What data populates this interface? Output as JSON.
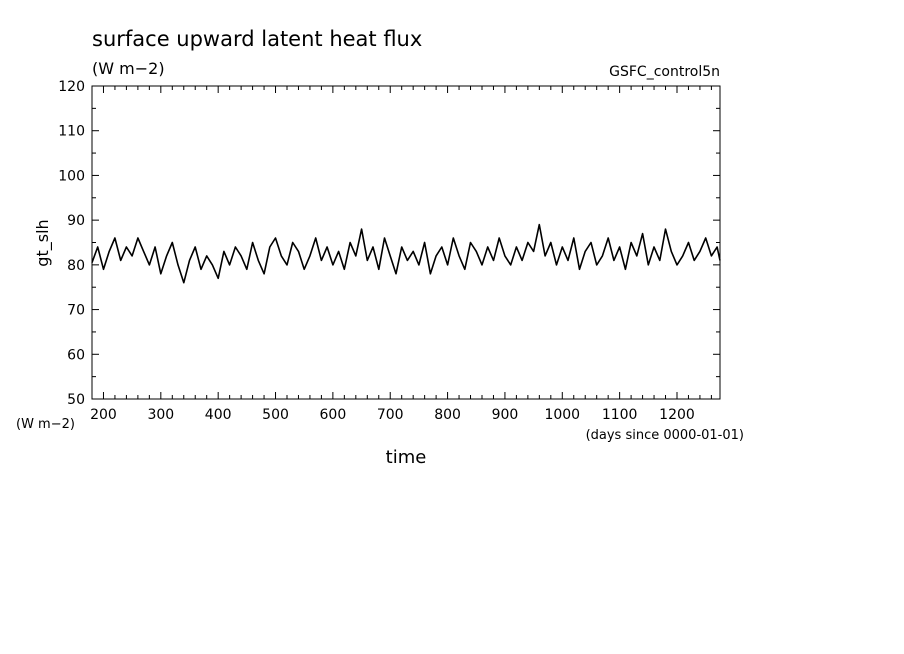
{
  "chart_data": {
    "type": "line",
    "title": "surface upward latent heat flux",
    "units_label": "(W m−2)",
    "run_label": "GSFC_control5n",
    "ylabel": "gt_slh",
    "y_unit_label": "(W m−2)",
    "xlabel": "time",
    "x_unit_label": "(days since 0000-01-01)",
    "xlim": [
      180,
      1275
    ],
    "ylim": [
      50,
      120
    ],
    "x_ticks": [
      200,
      300,
      400,
      500,
      600,
      700,
      800,
      900,
      1000,
      1100,
      1200
    ],
    "y_ticks": [
      50,
      60,
      70,
      80,
      90,
      100,
      110,
      120
    ],
    "series": [
      {
        "x": [
          180,
          190,
          200,
          210,
          220,
          230,
          240,
          250,
          260,
          270,
          280,
          290,
          300,
          310,
          320,
          330,
          340,
          350,
          360,
          370,
          380,
          390,
          400,
          410,
          420,
          430,
          440,
          450,
          460,
          470,
          480,
          490,
          500,
          510,
          520,
          530,
          540,
          550,
          560,
          570,
          580,
          590,
          600,
          610,
          620,
          630,
          640,
          650,
          660,
          670,
          680,
          690,
          700,
          710,
          720,
          730,
          740,
          750,
          760,
          770,
          780,
          790,
          800,
          810,
          820,
          830,
          840,
          850,
          860,
          870,
          880,
          890,
          900,
          910,
          920,
          930,
          940,
          950,
          960,
          970,
          980,
          990,
          1000,
          1010,
          1020,
          1030,
          1040,
          1050,
          1060,
          1070,
          1080,
          1090,
          1100,
          1110,
          1120,
          1130,
          1140,
          1150,
          1160,
          1170,
          1180,
          1190,
          1200,
          1210,
          1220,
          1230,
          1240,
          1250,
          1260,
          1270,
          1275
        ],
        "y": [
          80.5,
          84,
          79,
          83,
          86,
          81,
          84,
          82,
          86,
          83,
          80,
          84,
          78,
          82,
          85,
          80,
          76,
          81,
          84,
          79,
          82,
          80,
          77,
          83,
          80,
          84,
          82,
          79,
          85,
          81,
          78,
          84,
          86,
          82,
          80,
          85,
          83,
          79,
          82,
          86,
          81,
          84,
          80,
          83,
          79,
          85,
          82,
          88,
          81,
          84,
          79,
          86,
          82,
          78,
          84,
          81,
          83,
          80,
          85,
          78,
          82,
          84,
          80,
          86,
          82,
          79,
          85,
          83,
          80,
          84,
          81,
          86,
          82,
          80,
          84,
          81,
          85,
          83,
          89,
          82,
          85,
          80,
          84,
          81,
          86,
          79,
          83,
          85,
          80,
          82,
          86,
          81,
          84,
          79,
          85,
          82,
          87,
          80,
          84,
          81,
          88,
          83,
          80,
          82,
          85,
          81,
          83,
          86,
          82,
          84,
          81
        ]
      }
    ],
    "grid": false,
    "legend": "none"
  }
}
